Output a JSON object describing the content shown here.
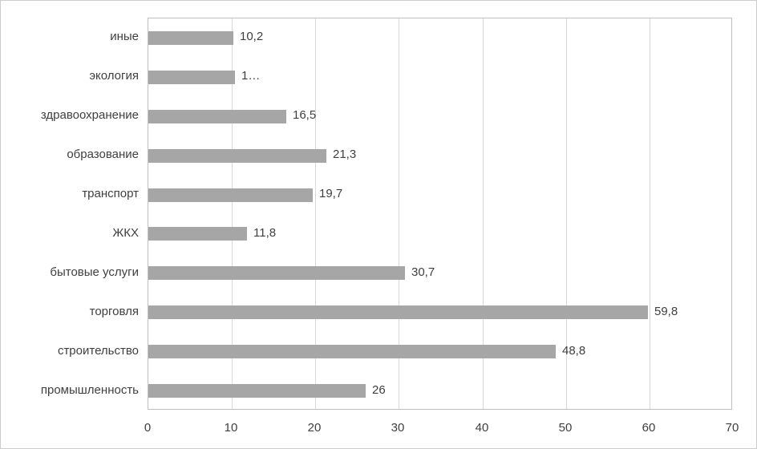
{
  "chart_data": {
    "type": "bar",
    "orientation": "horizontal",
    "title": "",
    "xlabel": "",
    "ylabel": "",
    "categories": [
      "иные",
      "экология",
      "здравоохранение",
      "образование",
      "транспорт",
      "ЖКХ",
      "бытовые услуги",
      "торговля",
      "строительство",
      "промышленность"
    ],
    "values": [
      10.2,
      10.4,
      16.5,
      21.3,
      19.7,
      11.8,
      30.7,
      59.8,
      48.8,
      26
    ],
    "value_labels": [
      "10,2",
      "1…",
      "16,5",
      "21,3",
      "19,7",
      "11,8",
      "30,7",
      "59,8",
      "48,8",
      "26"
    ],
    "xlim": [
      0,
      70
    ],
    "x_ticks": [
      0,
      10,
      20,
      30,
      40,
      50,
      60,
      70
    ],
    "x_tick_labels": [
      "0",
      "10",
      "20",
      "30",
      "40",
      "50",
      "60",
      "70"
    ],
    "grid": "vertical-only",
    "legend": "none",
    "colors": {
      "bar": "#a6a6a6",
      "gridline": "#d9d9d9",
      "plot_border": "#bfbfbf",
      "text": "#3f3f3f",
      "background": "#ffffff"
    }
  }
}
